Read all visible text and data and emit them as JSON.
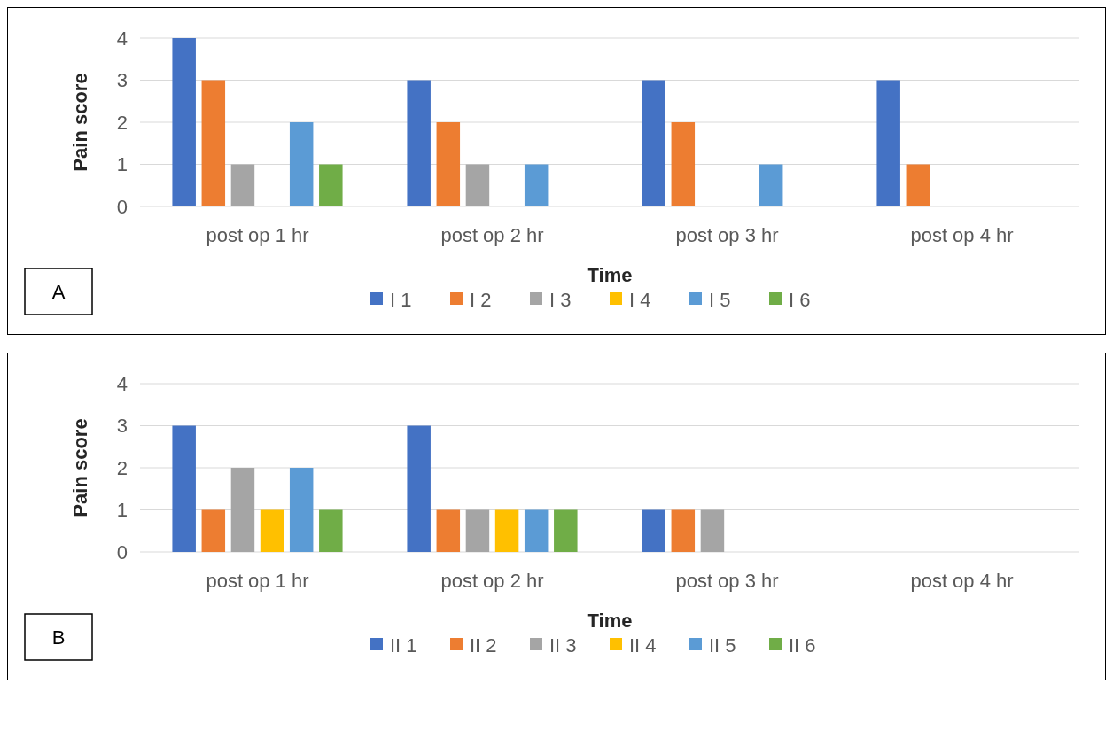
{
  "chart_data": [
    {
      "type": "bar",
      "xlabel": "Time",
      "ylabel": "Pain score",
      "categories": [
        "post op 1 hr",
        "post op 2 hr",
        "post op 3 hr",
        "post op 4 hr"
      ],
      "ylim": [
        0,
        4
      ],
      "yticks": [
        0,
        1,
        2,
        3,
        4
      ],
      "grid": "y",
      "legend": "bottom",
      "annotations": [
        "A"
      ],
      "series": [
        {
          "name": "I 1",
          "color": "#4472c4",
          "values": [
            4,
            3,
            3,
            3
          ]
        },
        {
          "name": "I 2",
          "color": "#ed7d31",
          "values": [
            3,
            2,
            2,
            1
          ]
        },
        {
          "name": "I 3",
          "color": "#a5a5a5",
          "values": [
            1,
            1,
            0,
            0
          ]
        },
        {
          "name": "I 4",
          "color": "#ffc000",
          "values": [
            0,
            0,
            0,
            0
          ]
        },
        {
          "name": "I 5",
          "color": "#5b9bd5",
          "values": [
            2,
            1,
            1,
            0
          ]
        },
        {
          "name": "I 6",
          "color": "#70ad47",
          "values": [
            1,
            0,
            0,
            0
          ]
        }
      ]
    },
    {
      "type": "bar",
      "xlabel": "Time",
      "ylabel": "Pain score",
      "categories": [
        "post op 1 hr",
        "post op 2 hr",
        "post op 3 hr",
        "post op 4 hr"
      ],
      "ylim": [
        0,
        4
      ],
      "yticks": [
        0,
        1,
        2,
        3,
        4
      ],
      "grid": "y",
      "legend": "bottom",
      "annotations": [
        "B"
      ],
      "series": [
        {
          "name": "II 1",
          "color": "#4472c4",
          "values": [
            3,
            3,
            1,
            0
          ]
        },
        {
          "name": "II 2",
          "color": "#ed7d31",
          "values": [
            1,
            1,
            1,
            0
          ]
        },
        {
          "name": "II 3",
          "color": "#a5a5a5",
          "values": [
            2,
            1,
            1,
            0
          ]
        },
        {
          "name": "II 4",
          "color": "#ffc000",
          "values": [
            1,
            1,
            0,
            0
          ]
        },
        {
          "name": "II 5",
          "color": "#5b9bd5",
          "values": [
            2,
            1,
            0,
            0
          ]
        },
        {
          "name": "II 6",
          "color": "#70ad47",
          "values": [
            1,
            1,
            0,
            0
          ]
        }
      ]
    }
  ]
}
